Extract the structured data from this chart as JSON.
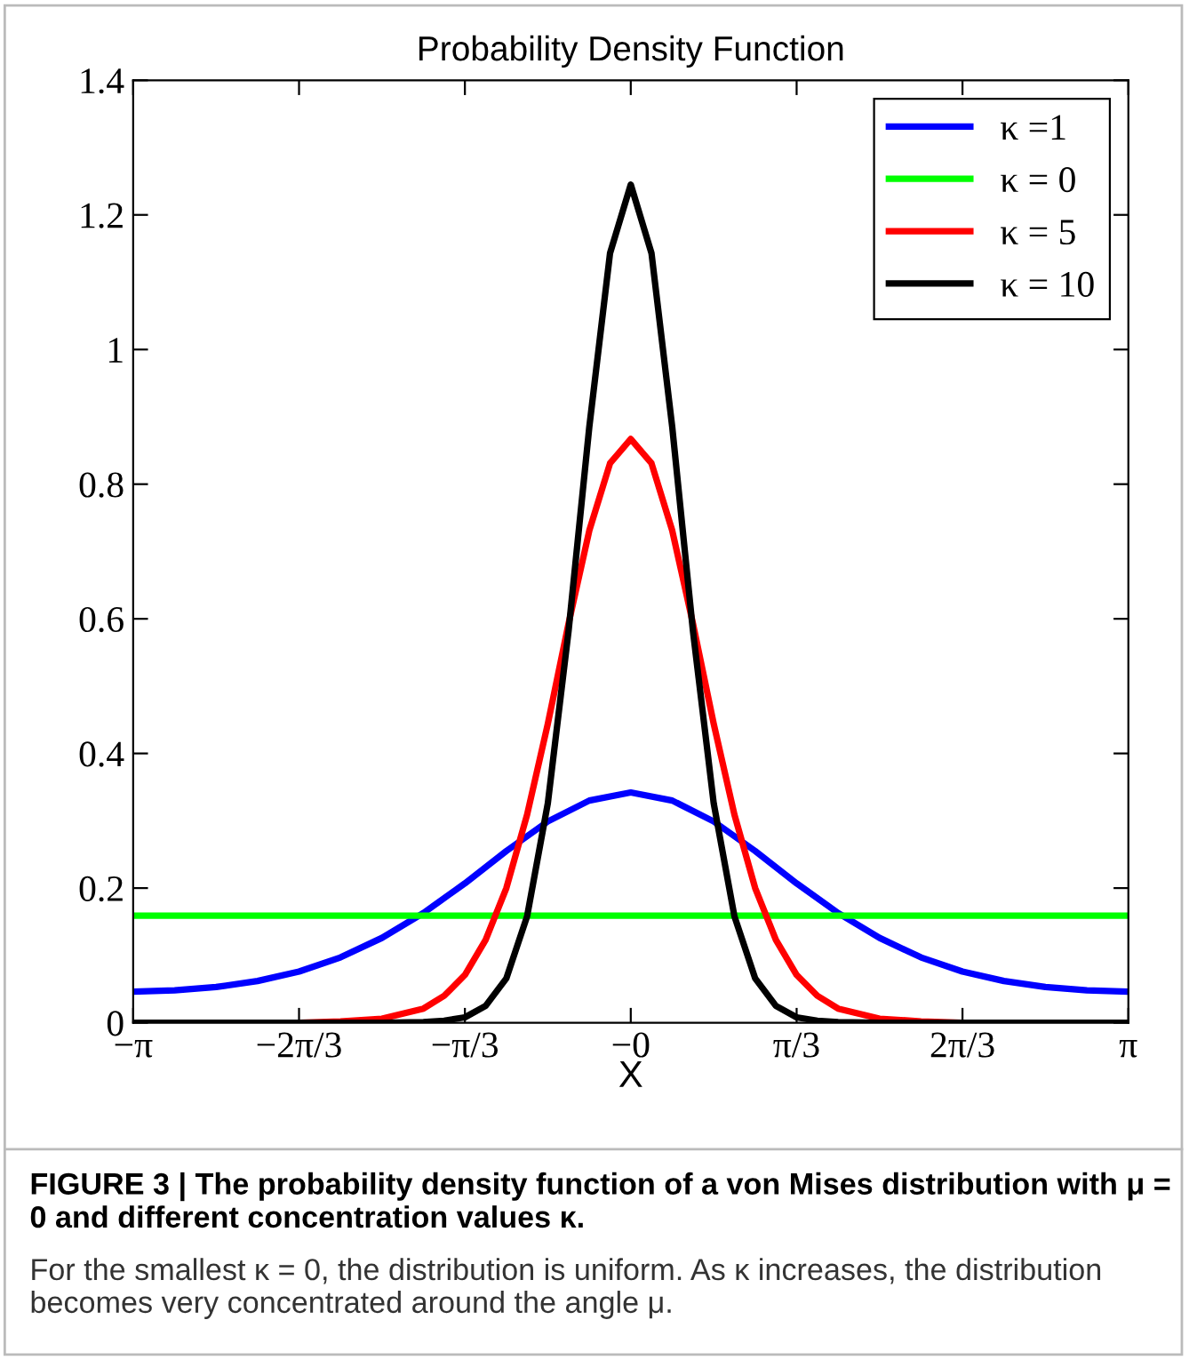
{
  "chart_data": {
    "type": "line",
    "title": "Probability Density Function",
    "xlabel": "X",
    "xlim": [
      -3.1416,
      3.1416
    ],
    "xticks": [
      {
        "value": -3.1416,
        "label": "−π"
      },
      {
        "value": -2.0944,
        "label": "−2π/3"
      },
      {
        "value": -1.0472,
        "label": "−π/3"
      },
      {
        "value": 0,
        "label": "−0"
      },
      {
        "value": 1.0472,
        "label": "π/3"
      },
      {
        "value": 2.0944,
        "label": "2π/3"
      },
      {
        "value": 3.1416,
        "label": "π"
      }
    ],
    "ylim": [
      0,
      1.4
    ],
    "yticks": [
      0,
      0.2,
      0.4,
      0.6,
      0.8,
      {
        "value": 1,
        "label": "1"
      },
      1.2,
      1.4
    ],
    "grid": false,
    "legend": "top right",
    "marker": "none",
    "line_style": "solid",
    "series": [
      {
        "name": "κ =1",
        "color": "#0000ff",
        "x": [
          -3.1416,
          -2.8798,
          -2.618,
          -2.3562,
          -2.0944,
          -1.8326,
          -1.5708,
          -1.309,
          -1.0472,
          -0.7854,
          -0.5236,
          -0.2618,
          0,
          0.2618,
          0.5236,
          0.7854,
          1.0472,
          1.309,
          1.5708,
          1.8326,
          2.0944,
          2.3562,
          2.618,
          2.8798,
          3.1416
        ],
        "values": [
          0.046,
          0.048,
          0.053,
          0.062,
          0.076,
          0.097,
          0.126,
          0.163,
          0.207,
          0.255,
          0.299,
          0.33,
          0.342,
          0.33,
          0.299,
          0.255,
          0.207,
          0.163,
          0.126,
          0.097,
          0.076,
          0.062,
          0.053,
          0.048,
          0.046
        ]
      },
      {
        "name": "κ = 0",
        "color": "#00ff00",
        "x": [
          -3.1416,
          3.1416
        ],
        "values": [
          0.159,
          0.159
        ]
      },
      {
        "name": "κ = 5",
        "color": "#ff0000",
        "x": [
          -3.1416,
          -2.618,
          -2.0944,
          -1.8326,
          -1.5708,
          -1.309,
          -1.1781,
          -1.0472,
          -0.9163,
          -0.7854,
          -0.6545,
          -0.5236,
          -0.3927,
          -0.2618,
          -0.1309,
          0,
          0.1309,
          0.2618,
          0.3927,
          0.5236,
          0.6545,
          0.7854,
          0.9163,
          1.0472,
          1.1781,
          1.309,
          1.5708,
          1.8326,
          2.0944,
          2.618,
          3.1416
        ],
        "values": [
          0,
          0,
          0,
          0.002,
          0.006,
          0.021,
          0.04,
          0.071,
          0.123,
          0.2,
          0.309,
          0.444,
          0.593,
          0.731,
          0.831,
          0.867,
          0.831,
          0.731,
          0.593,
          0.444,
          0.309,
          0.2,
          0.123,
          0.071,
          0.04,
          0.021,
          0.006,
          0.002,
          0,
          0,
          0
        ]
      },
      {
        "name": "κ = 10",
        "color": "#000000",
        "x": [
          -3.1416,
          -1.5708,
          -1.309,
          -1.1781,
          -1.0472,
          -0.9163,
          -0.7854,
          -0.6545,
          -0.5236,
          -0.3927,
          -0.2618,
          -0.1309,
          0,
          0.1309,
          0.2618,
          0.3927,
          0.5236,
          0.6545,
          0.7854,
          0.9163,
          1.0472,
          1.1781,
          1.309,
          1.5708,
          3.1416
        ],
        "values": [
          0,
          0,
          0.001,
          0.003,
          0.008,
          0.025,
          0.066,
          0.158,
          0.326,
          0.582,
          0.885,
          1.143,
          1.245,
          1.143,
          0.885,
          0.582,
          0.326,
          0.158,
          0.066,
          0.025,
          0.008,
          0.003,
          0.001,
          0,
          0
        ]
      }
    ],
    "annotations": [
      "FIGURE 3 | The probability density function of a von Mises distribution with μ = 0 and different concentration values κ.",
      "For the smallest κ = 0, the distribution is uniform. As κ increases, the distribution becomes very concentrated around the angle μ."
    ]
  }
}
